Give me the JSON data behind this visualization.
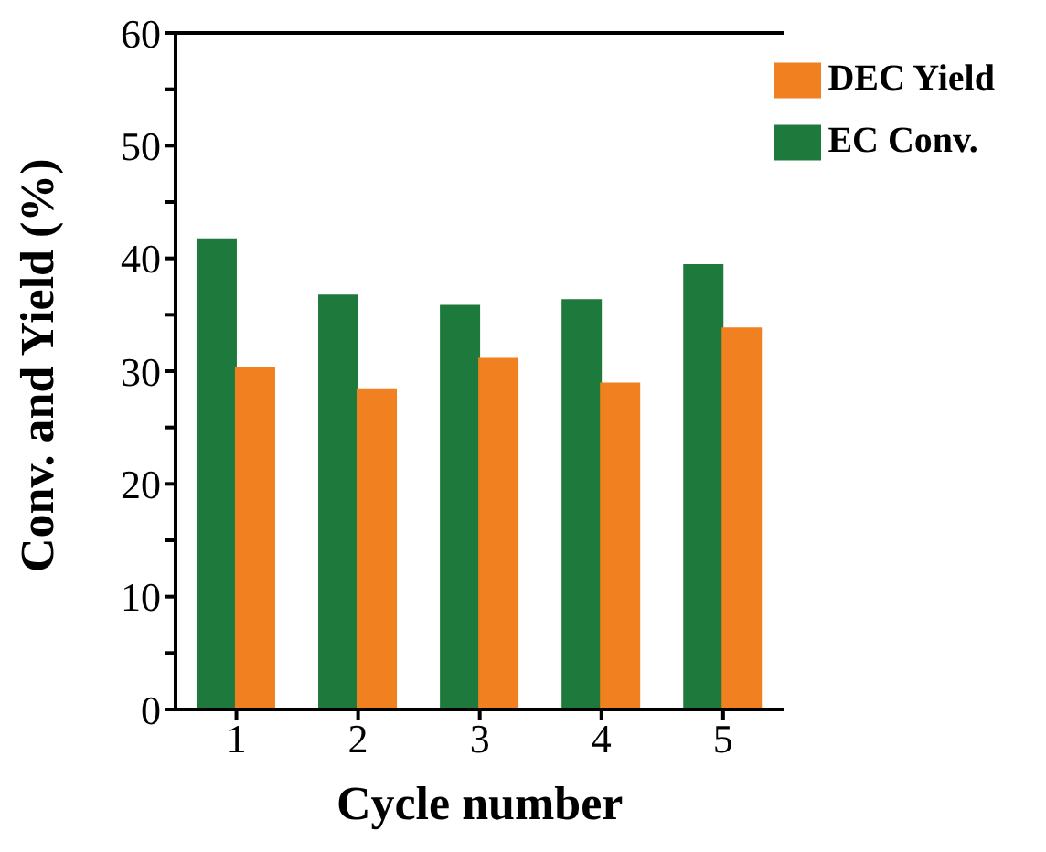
{
  "chart_data": {
    "type": "bar",
    "xlabel": "Cycle number",
    "ylabel": "Conv. and Yield (%)",
    "categories": [
      "1",
      "2",
      "3",
      "4",
      "5"
    ],
    "series": [
      {
        "name": "EC Conv.",
        "color": "#1e7a3c",
        "values": [
          41.7,
          36.7,
          35.8,
          36.3,
          39.4
        ]
      },
      {
        "name": "DEC Yield",
        "color": "#f08020",
        "values": [
          30.3,
          28.4,
          31.1,
          28.9,
          33.8
        ]
      }
    ],
    "ylim": [
      0,
      60
    ],
    "yticks": [
      0,
      {
        "value": 5,
        "label": null
      },
      10,
      {
        "value": 15,
        "label": null
      },
      20,
      {
        "value": 25,
        "label": null
      },
      30,
      {
        "value": 35,
        "label": null
      },
      40,
      {
        "value": 45,
        "label": null
      },
      50,
      {
        "value": 55,
        "label": null
      },
      60
    ],
    "grid": false,
    "legend": "top right"
  }
}
